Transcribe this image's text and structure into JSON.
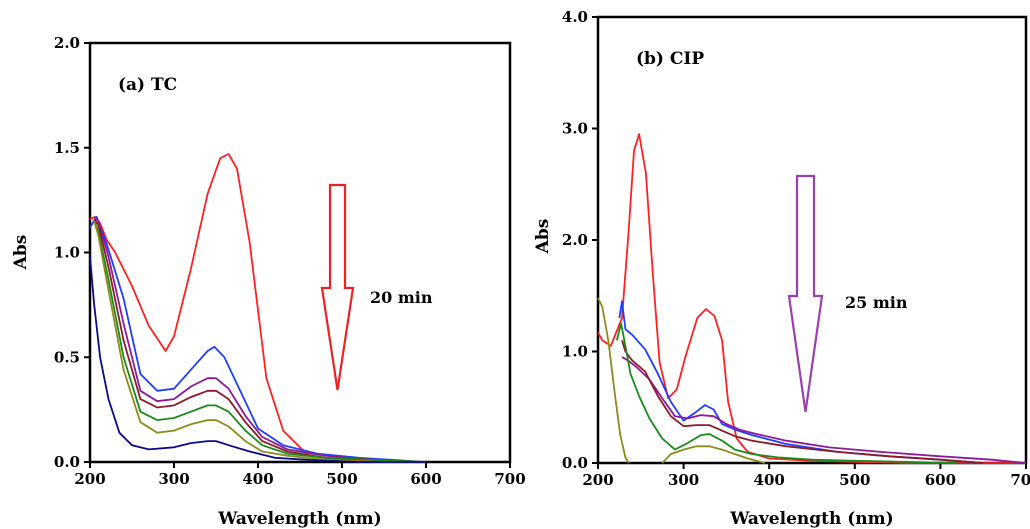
{
  "chart_data": [
    {
      "type": "line",
      "title": "(a) TC",
      "xlabel": "Wavelength (nm)",
      "ylabel": "Abs",
      "xlim": [
        200,
        700
      ],
      "ylim": [
        0,
        2.0
      ],
      "xticks": [
        "200",
        "300",
        "400",
        "500",
        "600",
        "700"
      ],
      "yticks": [
        "0.0",
        "0.5",
        "1.0",
        "1.5",
        "2.0"
      ],
      "annotation": "20 min",
      "arrow_color": "#ee2222",
      "series": [
        {
          "color": "#ff2020",
          "x": [
            200,
            206,
            212,
            220,
            230,
            250,
            270,
            290,
            300,
            320,
            340,
            355,
            365,
            375,
            390,
            410,
            430,
            460,
            500,
            550,
            600
          ],
          "y": [
            1.16,
            1.17,
            1.14,
            1.06,
            1.0,
            0.84,
            0.65,
            0.53,
            0.6,
            0.92,
            1.28,
            1.45,
            1.47,
            1.4,
            1.05,
            0.4,
            0.15,
            0.03,
            0.01,
            0.01,
            0.0
          ]
        },
        {
          "color": "#1f3fff",
          "x": [
            200,
            208,
            220,
            240,
            260,
            280,
            300,
            320,
            340,
            348,
            360,
            380,
            400,
            430,
            470,
            520,
            600
          ],
          "y": [
            1.12,
            1.17,
            1.04,
            0.78,
            0.42,
            0.34,
            0.35,
            0.44,
            0.53,
            0.55,
            0.5,
            0.33,
            0.16,
            0.08,
            0.04,
            0.02,
            0.0
          ]
        },
        {
          "color": "#8b1a9b",
          "x": [
            205,
            210,
            222,
            240,
            260,
            280,
            300,
            320,
            340,
            350,
            365,
            385,
            405,
            435,
            480,
            540,
            600
          ],
          "y": [
            1.17,
            1.15,
            0.98,
            0.66,
            0.34,
            0.29,
            0.3,
            0.36,
            0.4,
            0.4,
            0.35,
            0.22,
            0.12,
            0.06,
            0.03,
            0.01,
            0.0
          ]
        },
        {
          "color": "#8b1a2a",
          "x": [
            205,
            210,
            222,
            240,
            260,
            280,
            300,
            320,
            340,
            350,
            365,
            385,
            405,
            435,
            480,
            540,
            600
          ],
          "y": [
            1.16,
            1.13,
            0.93,
            0.58,
            0.3,
            0.26,
            0.27,
            0.31,
            0.34,
            0.34,
            0.3,
            0.19,
            0.1,
            0.05,
            0.02,
            0.01,
            0.0
          ]
        },
        {
          "color": "#1a8a1a",
          "x": [
            205,
            210,
            222,
            240,
            260,
            280,
            300,
            320,
            340,
            350,
            365,
            385,
            405,
            435,
            480,
            540,
            600
          ],
          "y": [
            1.15,
            1.1,
            0.87,
            0.5,
            0.24,
            0.2,
            0.21,
            0.24,
            0.27,
            0.27,
            0.24,
            0.15,
            0.08,
            0.04,
            0.02,
            0.01,
            0.0
          ]
        },
        {
          "color": "#8c8c1a",
          "x": [
            205,
            210,
            222,
            240,
            260,
            280,
            300,
            320,
            340,
            350,
            365,
            385,
            405,
            435,
            480,
            540,
            600
          ],
          "y": [
            1.15,
            1.08,
            0.82,
            0.44,
            0.19,
            0.14,
            0.15,
            0.18,
            0.2,
            0.2,
            0.17,
            0.1,
            0.05,
            0.03,
            0.01,
            0.0,
            0.0
          ]
        },
        {
          "color": "#0a0a8a",
          "x": [
            200,
            205,
            212,
            222,
            235,
            250,
            270,
            300,
            320,
            340,
            350,
            365,
            390,
            420,
            460,
            520,
            600
          ],
          "y": [
            0.98,
            0.75,
            0.5,
            0.3,
            0.14,
            0.08,
            0.06,
            0.07,
            0.09,
            0.1,
            0.1,
            0.08,
            0.05,
            0.02,
            0.01,
            0.0,
            0.0
          ]
        }
      ]
    },
    {
      "type": "line",
      "title": "(b) CIP",
      "xlabel": "Wavelength (nm)",
      "ylabel": "Abs",
      "xlim": [
        200,
        700
      ],
      "ylim": [
        0,
        4.0
      ],
      "xticks": [
        "200",
        "300",
        "400",
        "500",
        "600",
        "700"
      ],
      "yticks": [
        "0.0",
        "1.0",
        "2.0",
        "3.0",
        "4.0"
      ],
      "annotation": "25 min",
      "arrow_color": "#9b3fb0",
      "series": [
        {
          "color": "#ff2020",
          "x": [
            200,
            205,
            215,
            228,
            236,
            242,
            248,
            256,
            264,
            272,
            282,
            292,
            302,
            316,
            326,
            336,
            345,
            352,
            362,
            375,
            400,
            450,
            500,
            560,
            620,
            700
          ],
          "y": [
            1.17,
            1.1,
            1.05,
            1.3,
            2.1,
            2.8,
            2.95,
            2.6,
            1.7,
            0.9,
            0.58,
            0.66,
            0.95,
            1.3,
            1.38,
            1.32,
            1.1,
            0.55,
            0.22,
            0.1,
            0.04,
            0.02,
            0.01,
            0.0,
            0.0,
            0.0
          ]
        },
        {
          "color": "#1f3fff",
          "x": [
            225,
            228,
            232,
            240,
            255,
            270,
            285,
            300,
            315,
            325,
            335,
            345,
            360,
            380,
            420,
            480,
            540,
            600,
            650
          ],
          "y": [
            1.3,
            1.45,
            1.2,
            1.15,
            1.02,
            0.8,
            0.55,
            0.38,
            0.46,
            0.52,
            0.48,
            0.35,
            0.3,
            0.25,
            0.17,
            0.1,
            0.06,
            0.03,
            0.0
          ]
        },
        {
          "color": "#8b1a9b",
          "x": [
            228,
            235,
            245,
            260,
            275,
            290,
            305,
            320,
            335,
            350,
            365,
            385,
            420,
            470,
            530,
            600,
            660,
            700
          ],
          "y": [
            0.95,
            0.92,
            0.86,
            0.75,
            0.58,
            0.42,
            0.4,
            0.43,
            0.42,
            0.35,
            0.3,
            0.26,
            0.2,
            0.14,
            0.1,
            0.06,
            0.03,
            0.0
          ]
        },
        {
          "color": "#8b1a2a",
          "x": [
            228,
            232,
            240,
            255,
            270,
            285,
            300,
            315,
            330,
            345,
            360,
            380,
            420,
            480,
            540,
            600,
            650
          ],
          "y": [
            1.1,
            1.0,
            0.92,
            0.82,
            0.6,
            0.42,
            0.33,
            0.34,
            0.34,
            0.29,
            0.24,
            0.2,
            0.15,
            0.1,
            0.06,
            0.03,
            0.0
          ]
        },
        {
          "color": "#1a8a1a",
          "x": [
            222,
            227,
            232,
            238,
            248,
            260,
            275,
            290,
            305,
            320,
            330,
            345,
            360,
            380,
            410,
            450,
            500,
            560,
            620
          ],
          "y": [
            1.1,
            1.25,
            1.05,
            0.8,
            0.6,
            0.4,
            0.22,
            0.12,
            0.18,
            0.25,
            0.26,
            0.2,
            0.12,
            0.08,
            0.05,
            0.03,
            0.02,
            0.01,
            0.0
          ]
        },
        {
          "color": "#8c8c1a",
          "x": [
            200,
            205,
            212,
            220,
            226,
            232,
            236
          ],
          "y": [
            1.48,
            1.4,
            1.1,
            0.6,
            0.25,
            0.05,
            0.0
          ]
        },
        {
          "color": "#8c8c1a",
          "x": [
            275,
            285,
            300,
            315,
            330,
            345,
            360,
            375,
            385,
            395
          ],
          "y": [
            0.0,
            0.08,
            0.12,
            0.15,
            0.15,
            0.12,
            0.08,
            0.04,
            0.02,
            0.0
          ]
        }
      ]
    }
  ]
}
